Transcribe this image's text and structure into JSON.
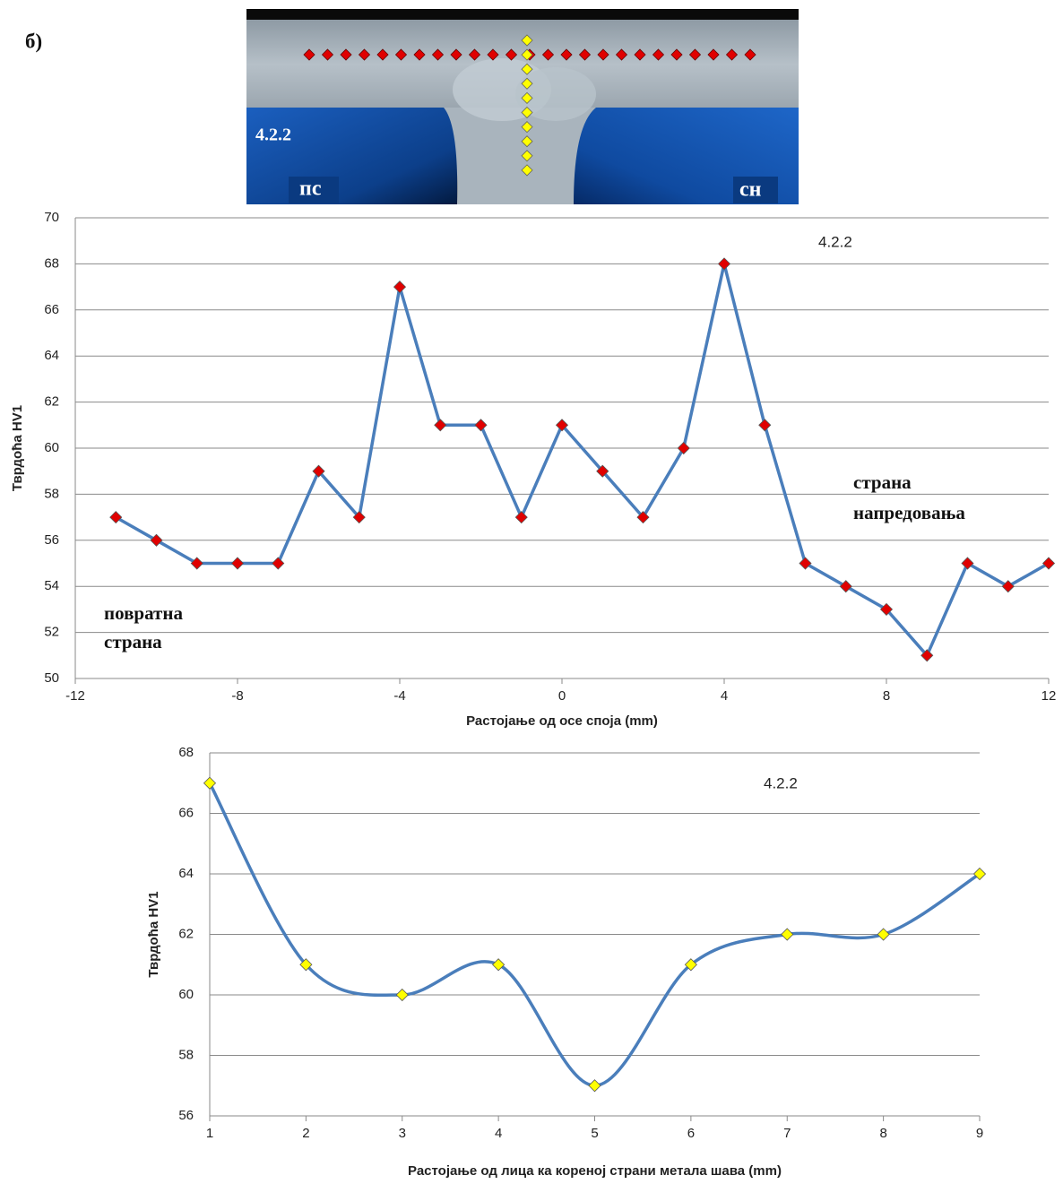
{
  "figure": {
    "label": "б)",
    "image_labels": [
      "4.2.2",
      "пс",
      "сн"
    ]
  },
  "chart_data": [
    {
      "type": "line",
      "x": [
        -11,
        -10,
        -9,
        -8,
        -7,
        -6,
        -5,
        -4,
        -3,
        -2,
        -1,
        0,
        1,
        2,
        3,
        4,
        5,
        6,
        7,
        8,
        9,
        10,
        11,
        12
      ],
      "series": [
        {
          "color": "#4a7ebb",
          "marker_color": "#e00000",
          "values": [
            57,
            56,
            55,
            55,
            55,
            59,
            57,
            67,
            61,
            61,
            57,
            61,
            59,
            57,
            60,
            68,
            61,
            55,
            54,
            53,
            51,
            55,
            54,
            55
          ]
        }
      ],
      "xlim": [
        -12,
        12
      ],
      "xticks": [
        -12,
        -8,
        -4,
        0,
        4,
        8,
        12
      ],
      "ylim": [
        50,
        70
      ],
      "yticks": [
        50,
        52,
        54,
        56,
        58,
        60,
        62,
        64,
        66,
        68,
        70
      ],
      "grid": true,
      "smooth": false,
      "marker": "diamond",
      "x_label": "Растојање  од осе споја  (mm)",
      "y_label": "Тврдоћа  HV1",
      "annotations": [
        [
          "4.2.2"
        ],
        [
          "страна",
          "напредовања"
        ],
        [
          "повратна",
          "страна"
        ]
      ]
    },
    {
      "type": "line",
      "x": [
        1,
        2,
        3,
        4,
        5,
        6,
        7,
        8,
        9
      ],
      "series": [
        {
          "color": "#4a7ebb",
          "marker_color": "#ffff00",
          "values": [
            67,
            61,
            60,
            61,
            57,
            61,
            62,
            62,
            64
          ]
        }
      ],
      "xlim": [
        1,
        9
      ],
      "xticks": [
        1,
        2,
        3,
        4,
        5,
        6,
        7,
        8,
        9
      ],
      "ylim": [
        56,
        68
      ],
      "yticks": [
        56,
        58,
        60,
        62,
        64,
        66,
        68
      ],
      "grid": true,
      "smooth": true,
      "marker": "diamond",
      "x_label": "Растојање  од лица ка кореној  страни  метала шава (mm)",
      "y_label": "Тврдоћа  HV1",
      "annotations": [
        [
          "4.2.2"
        ]
      ]
    }
  ]
}
